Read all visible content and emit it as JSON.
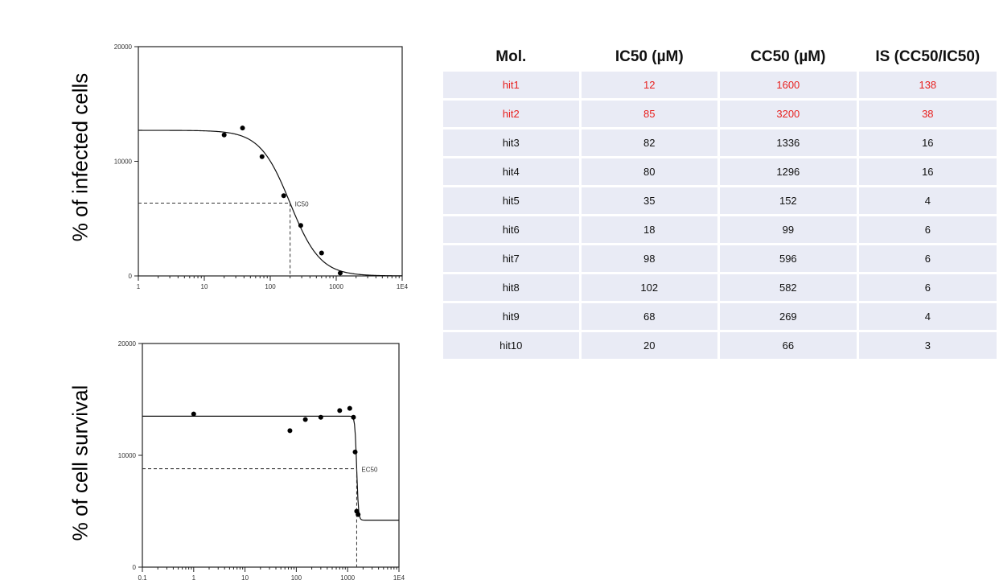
{
  "charts": {
    "ylabel_top": "% of infected cells",
    "ylabel_bottom": "% of cell survival"
  },
  "chart_data": [
    {
      "type": "scatter",
      "xscale": "log",
      "xlim": [
        1,
        10000
      ],
      "ylim": [
        0,
        20000
      ],
      "x_ticks": [
        "1",
        "10",
        "100",
        "1000",
        "1E4"
      ],
      "y_ticks": [
        "0",
        "10000",
        "20000"
      ],
      "points": [
        {
          "x": 20,
          "y": 12300
        },
        {
          "x": 38,
          "y": 12900
        },
        {
          "x": 75,
          "y": 10400
        },
        {
          "x": 160,
          "y": 7000
        },
        {
          "x": 290,
          "y": 4400
        },
        {
          "x": 600,
          "y": 2000
        },
        {
          "x": 1150,
          "y": 250
        }
      ],
      "fit_curve": {
        "top": 12700,
        "bottom": 0,
        "ic50": 200,
        "hill": 1.9
      },
      "reference": {
        "label": "IC50",
        "x": 200,
        "y": 6350
      }
    },
    {
      "type": "scatter",
      "xscale": "log",
      "xlim": [
        0.1,
        10000
      ],
      "ylim": [
        0,
        20000
      ],
      "x_ticks": [
        "0.1",
        "1",
        "10",
        "100",
        "1000",
        "1E4"
      ],
      "y_ticks": [
        "0",
        "10000",
        "20000"
      ],
      "points": [
        {
          "x": 1,
          "y": 13700
        },
        {
          "x": 75,
          "y": 12200
        },
        {
          "x": 150,
          "y": 13200
        },
        {
          "x": 300,
          "y": 13400
        },
        {
          "x": 700,
          "y": 14000
        },
        {
          "x": 1100,
          "y": 14200
        },
        {
          "x": 1300,
          "y": 13400
        },
        {
          "x": 1400,
          "y": 10300
        },
        {
          "x": 1500,
          "y": 5000
        },
        {
          "x": 1600,
          "y": 4700
        }
      ],
      "fit_curve": {
        "top": 13500,
        "bottom": 4200,
        "ec50": 1500,
        "hill": 25
      },
      "reference": {
        "label": "EC50",
        "x": 1500,
        "y": 8800
      }
    }
  ],
  "table": {
    "headers": [
      "Mol.",
      "IC50 (µM)",
      "CC50 (µM)",
      "IS (CC50/IC50)"
    ],
    "rows": [
      {
        "cells": [
          "hit1",
          "12",
          "1600",
          "138"
        ],
        "highlight": true
      },
      {
        "cells": [
          "hit2",
          "85",
          "3200",
          "38"
        ],
        "highlight": true
      },
      {
        "cells": [
          "hit3",
          "82",
          "1336",
          "16"
        ],
        "highlight": false
      },
      {
        "cells": [
          "hit4",
          "80",
          "1296",
          "16"
        ],
        "highlight": false
      },
      {
        "cells": [
          "hit5",
          "35",
          "152",
          "4"
        ],
        "highlight": false
      },
      {
        "cells": [
          "hit6",
          "18",
          "99",
          "6"
        ],
        "highlight": false
      },
      {
        "cells": [
          "hit7",
          "98",
          "596",
          "6"
        ],
        "highlight": false
      },
      {
        "cells": [
          "hit8",
          "102",
          "582",
          "6"
        ],
        "highlight": false
      },
      {
        "cells": [
          "hit9",
          "68",
          "269",
          "4"
        ],
        "highlight": false
      },
      {
        "cells": [
          "hit10",
          "20",
          "66",
          "3"
        ],
        "highlight": false
      }
    ],
    "highlight_color": "#e8201e",
    "cell_bg": "#e9ebf5"
  }
}
